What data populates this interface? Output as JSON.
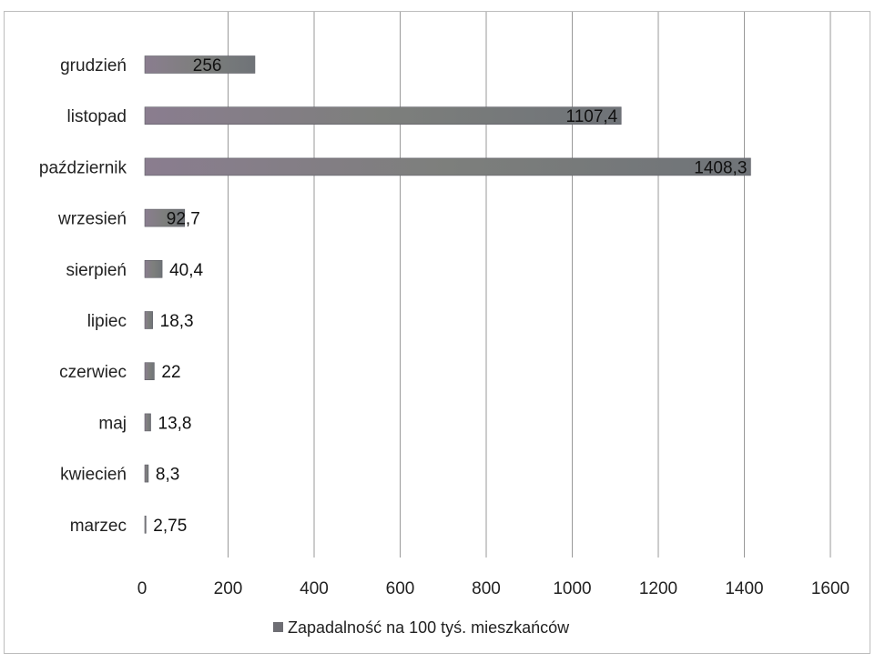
{
  "chart_data": {
    "type": "bar",
    "orientation": "horizontal",
    "categories": [
      "grudzień",
      "listopad",
      "październik",
      "wrzesień",
      "sierpień",
      "lipiec",
      "czerwiec",
      "maj",
      "kwiecień",
      "marzec"
    ],
    "series": [
      {
        "name": "Zapadalność na 100 tyś. mieszkańców",
        "values": [
          256,
          1107.4,
          1408.3,
          92.7,
          40.4,
          18.3,
          22,
          13.8,
          8.3,
          2.75
        ],
        "data_labels": [
          "256",
          "1107,4",
          "1408,3",
          "92,7",
          "40,4",
          "18,3",
          "22",
          "13,8",
          "8,3",
          "2,75"
        ],
        "color": "#7a7a82"
      }
    ],
    "x_ticks": [
      "0",
      "200",
      "400",
      "600",
      "800",
      "1000",
      "1200",
      "1400",
      "1600"
    ],
    "xlim": [
      0,
      1600
    ],
    "grid": "vertical",
    "legend_position": "bottom",
    "title": "",
    "xlabel": "",
    "ylabel": ""
  }
}
